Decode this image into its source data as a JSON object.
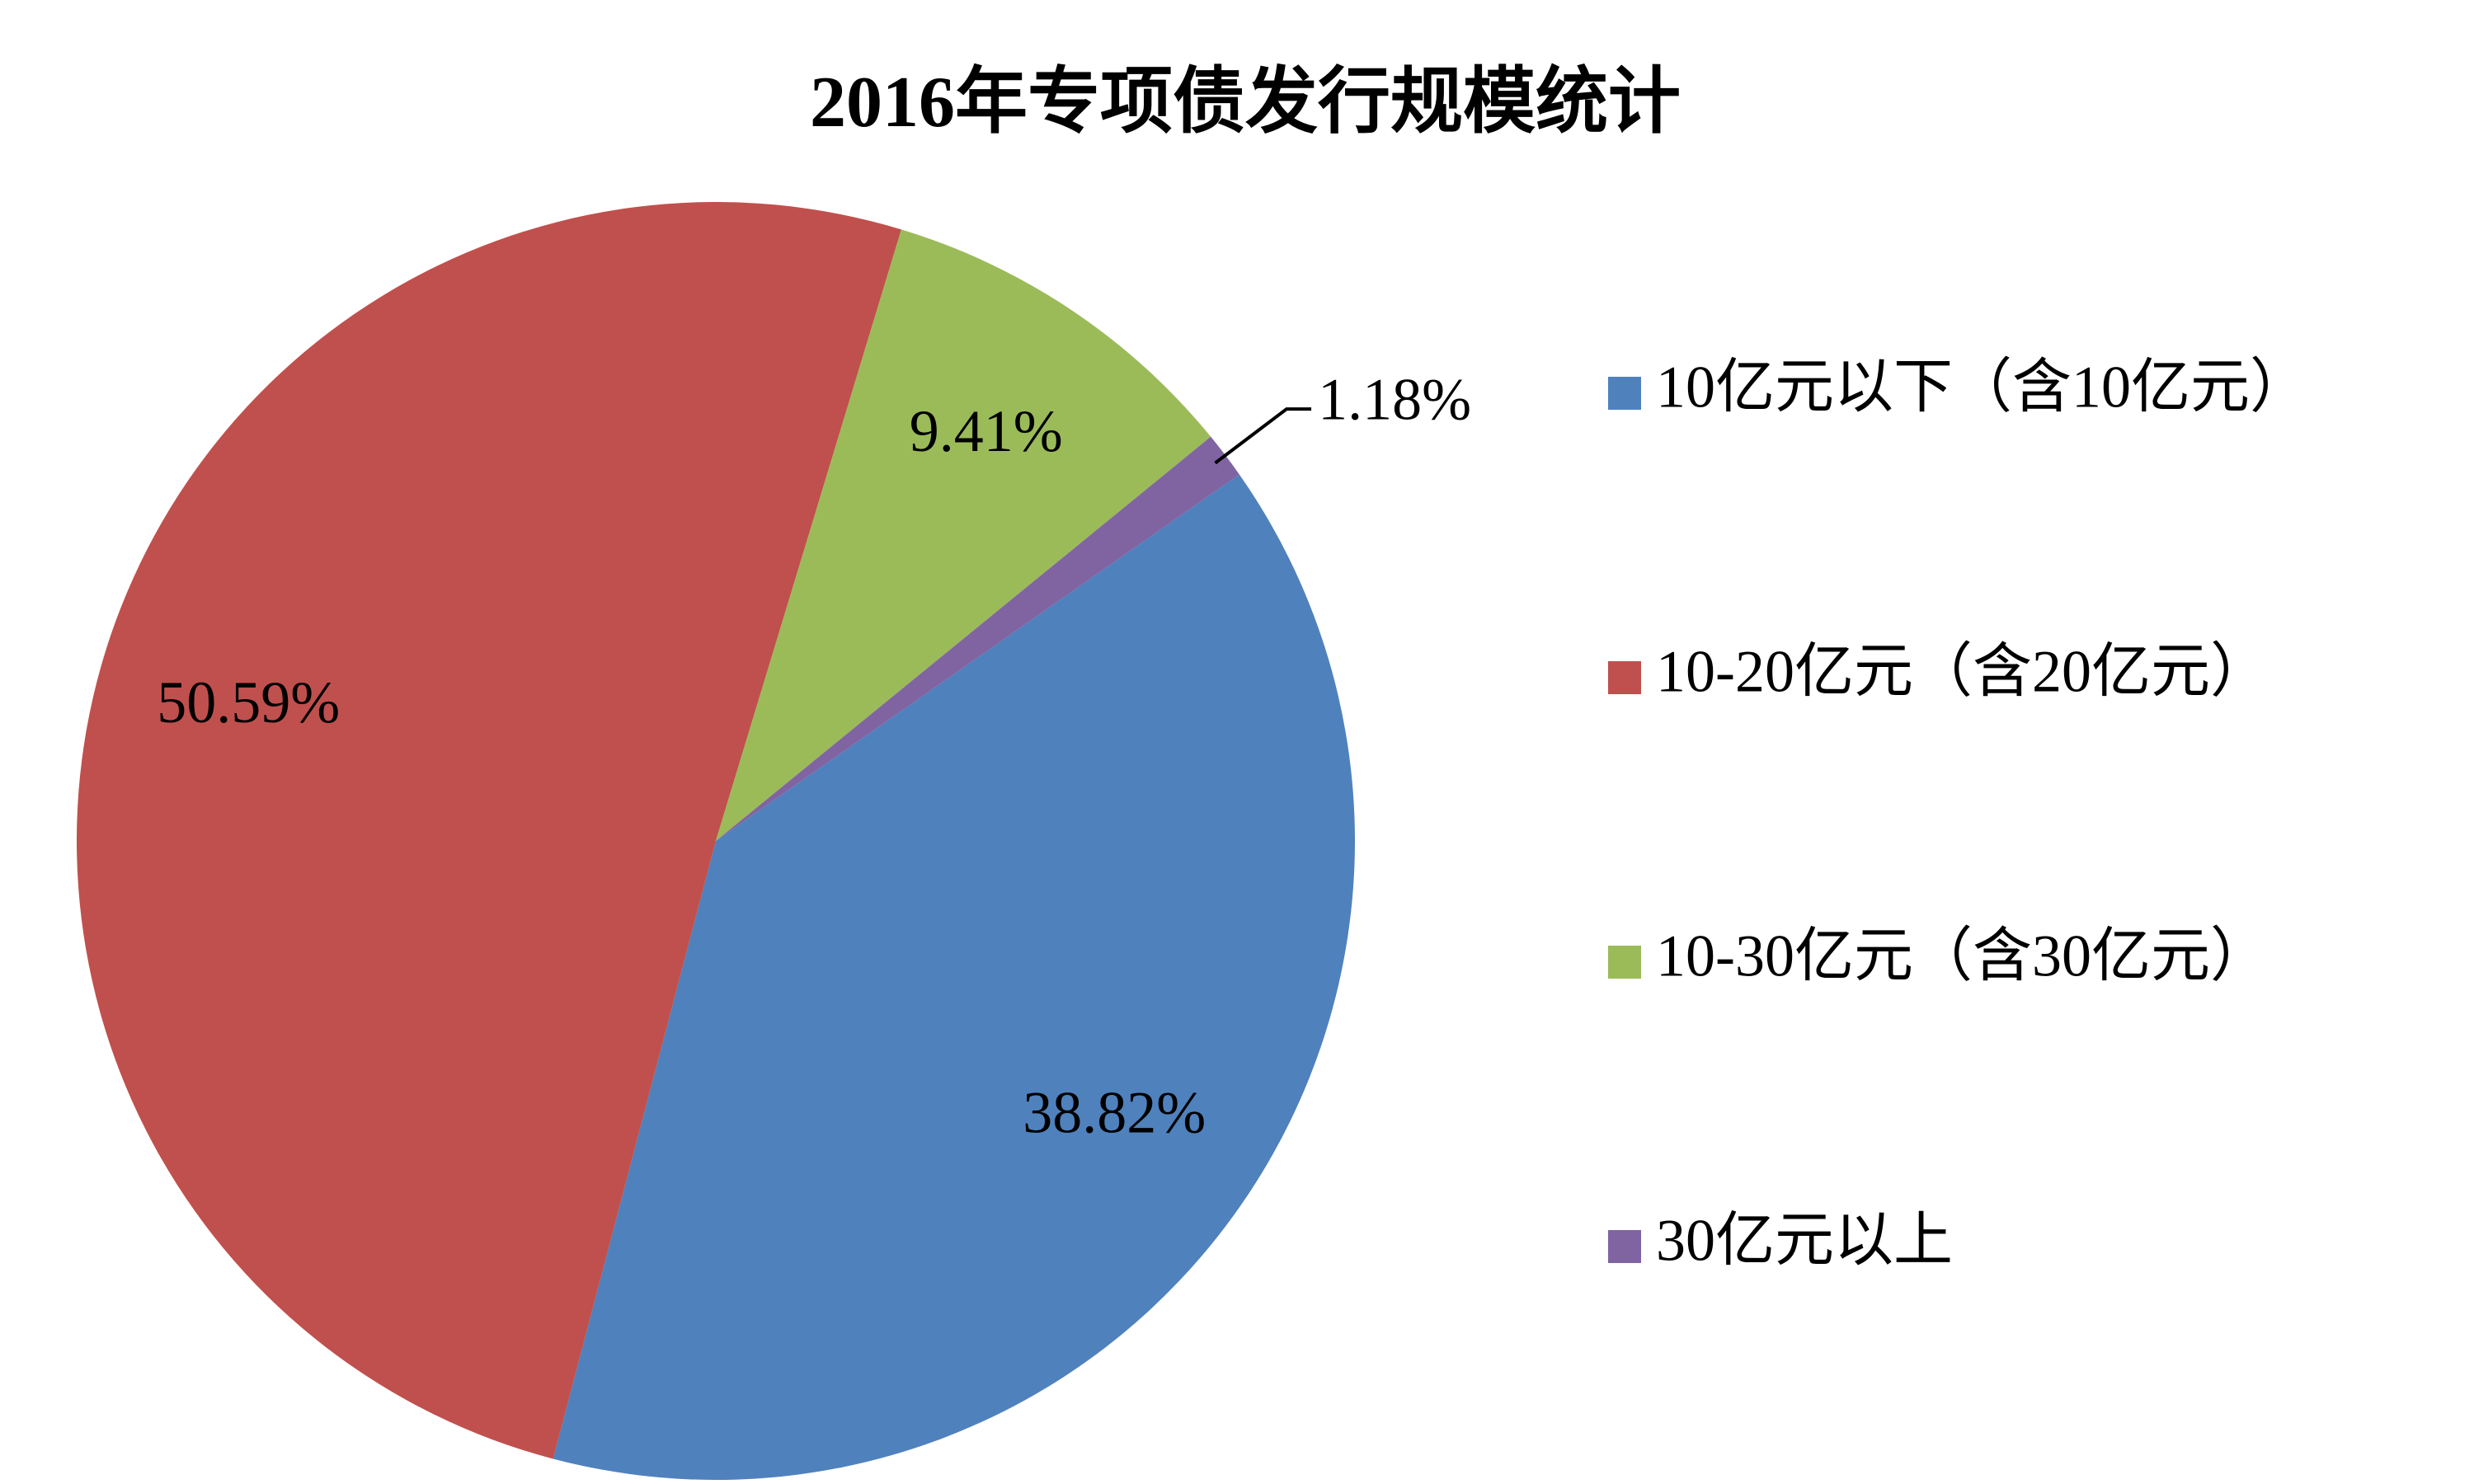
{
  "chart_data": {
    "type": "pie",
    "title": "2016年专项债发行规模统计",
    "categories": [
      "10亿元以下（含10亿元）",
      "10-20亿元（含20亿元）",
      "10-30亿元（含30亿元）",
      "30亿元以上"
    ],
    "values": [
      38.82,
      50.59,
      9.41,
      1.18
    ],
    "value_labels": [
      "38.82%",
      "50.59%",
      "9.41%",
      "1.18%"
    ],
    "colors": [
      "#4f81bd",
      "#c0504d",
      "#9bbb59",
      "#8064a2"
    ],
    "legend": "right"
  }
}
